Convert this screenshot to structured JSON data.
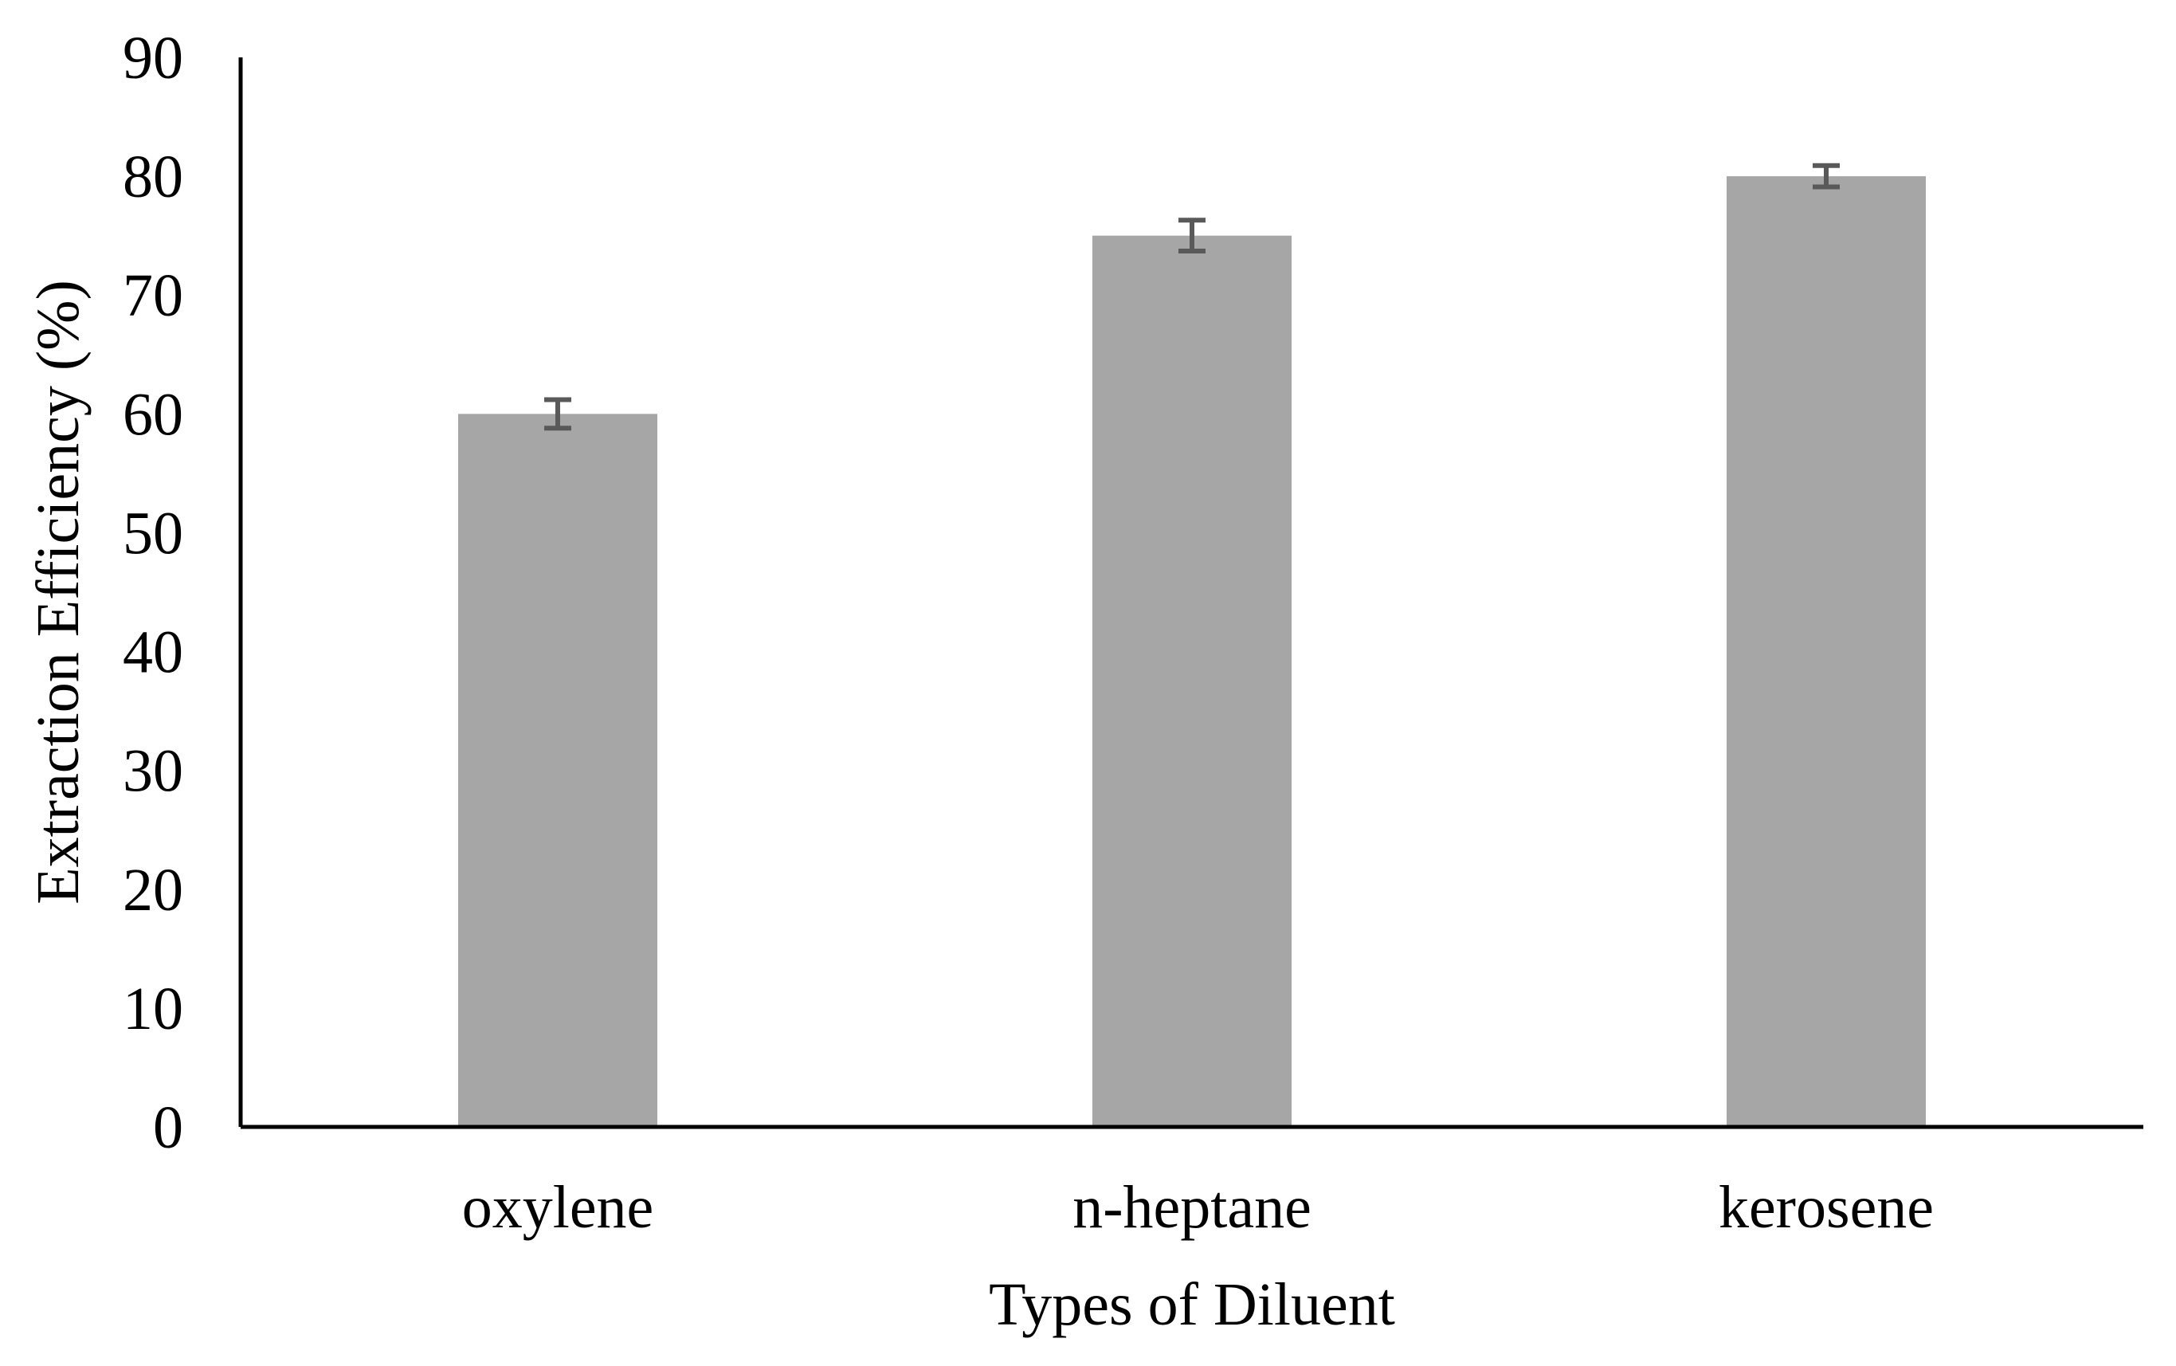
{
  "chart_data": {
    "type": "bar",
    "title": "",
    "xlabel": "Types of Diluent",
    "ylabel": "Extraction Efficiency (%)",
    "categories": [
      "oxylene",
      "n-heptane",
      "kerosene"
    ],
    "values": [
      60,
      75,
      80
    ],
    "error_bars": [
      1.2,
      1.3,
      0.9
    ],
    "ylim": [
      0,
      90
    ],
    "yticks": [
      0,
      10,
      20,
      30,
      40,
      50,
      60,
      70,
      80,
      90
    ],
    "grid": false,
    "legend": "none",
    "colors": {
      "bar": "#a6a6a6",
      "error_bar": "#595959",
      "axis": "#000000"
    }
  }
}
